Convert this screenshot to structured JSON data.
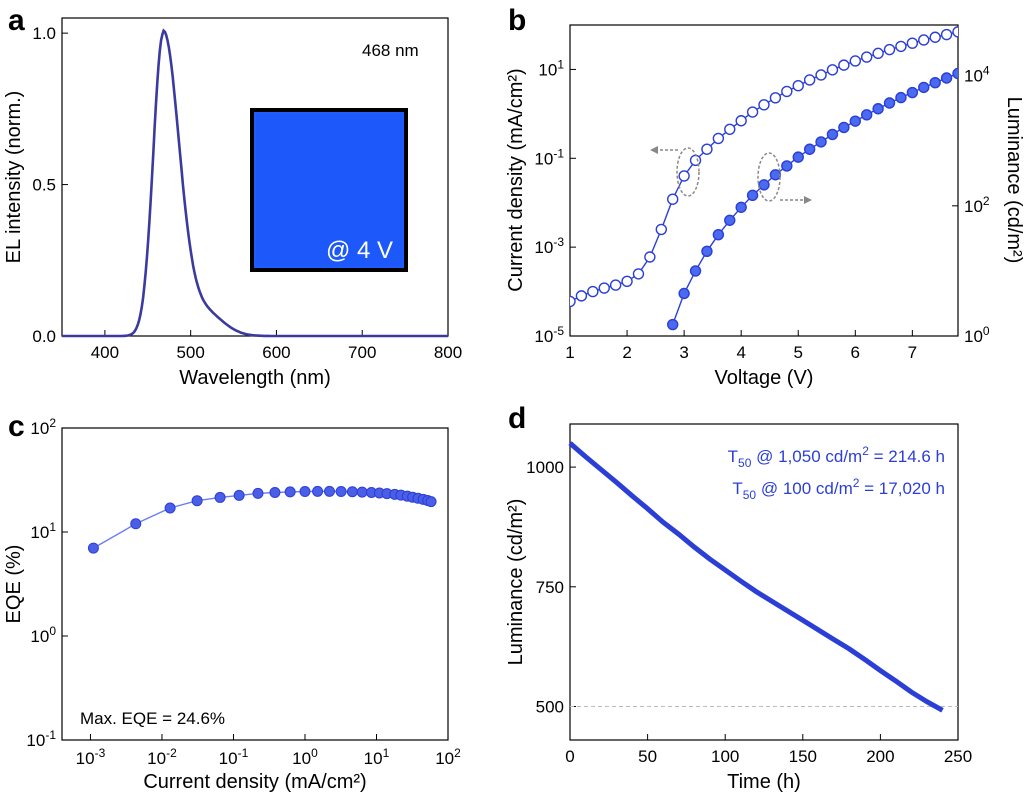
{
  "chart_data": [
    {
      "id": "a",
      "type": "line",
      "panel_label": "a",
      "xlabel": "Wavelength (nm)",
      "ylabel": "EL intensity (norm.)",
      "xlim": [
        350,
        800
      ],
      "ylim": [
        0,
        1.05
      ],
      "xticks": [
        400,
        500,
        600,
        700,
        800
      ],
      "yticks": [
        0.0,
        0.5,
        1.0
      ],
      "ytick_labels": [
        "0.0",
        "0.5",
        "1.0"
      ],
      "peak_nm": 468,
      "fwhm_nm": 32,
      "annotation": "468 nm",
      "inset_text": "@ 4 V",
      "inset_color": "#1f5cff",
      "line_color": "#3a3aa0"
    },
    {
      "id": "b",
      "type": "scatter",
      "panel_label": "b",
      "xlabel": "Voltage (V)",
      "ylabel_left": "Current density (mA/cm²)",
      "ylabel_right": "Luminance (cd/m²)",
      "xlim": [
        1,
        7.8
      ],
      "ylim_left": [
        1e-05,
        100
      ],
      "ylim_right": [
        1,
        60000
      ],
      "xticks": [
        1,
        2,
        3,
        4,
        5,
        6,
        7
      ],
      "yticks_left": [
        {
          "base": "10",
          "exp": "-5",
          "v": 1e-05
        },
        {
          "base": "10",
          "exp": "-3",
          "v": 0.001
        },
        {
          "base": "10",
          "exp": "-1",
          "v": 0.1
        },
        {
          "base": "10",
          "exp": "1",
          "v": 10
        }
      ],
      "yticks_right": [
        {
          "base": "10",
          "exp": "0",
          "v": 1
        },
        {
          "base": "10",
          "exp": "2",
          "v": 100
        },
        {
          "base": "10",
          "exp": "4",
          "v": 10000
        }
      ],
      "scale": "log",
      "series": [
        {
          "axis": "left",
          "marker": "open",
          "x": [
            1.0,
            1.2,
            1.4,
            1.6,
            1.8,
            2.0,
            2.2,
            2.4,
            2.6,
            2.8,
            3.0,
            3.2,
            3.4,
            3.6,
            3.8,
            4.0,
            4.2,
            4.4,
            4.6,
            4.8,
            5.0,
            5.2,
            5.4,
            5.6,
            5.8,
            6.0,
            6.2,
            6.4,
            6.6,
            6.8,
            7.0,
            7.2,
            7.4,
            7.6,
            7.8
          ],
          "values": [
            6e-05,
            8e-05,
            0.0001,
            0.00012,
            0.00014,
            0.00017,
            0.00025,
            0.0006,
            0.0025,
            0.012,
            0.04,
            0.09,
            0.16,
            0.28,
            0.45,
            0.7,
            1.1,
            1.6,
            2.3,
            3.2,
            4.3,
            5.8,
            7.5,
            9.8,
            12.5,
            15.5,
            19,
            23,
            28,
            33,
            39,
            46,
            53,
            61,
            70
          ]
        },
        {
          "axis": "right",
          "marker": "filled",
          "x": [
            2.8,
            3.0,
            3.2,
            3.4,
            3.6,
            3.8,
            4.0,
            4.2,
            4.4,
            4.6,
            4.8,
            5.0,
            5.2,
            5.4,
            5.6,
            5.8,
            6.0,
            6.2,
            6.4,
            6.6,
            6.8,
            7.0,
            7.2,
            7.4,
            7.6,
            7.8
          ],
          "values": [
            1.5,
            4.5,
            10,
            20,
            36,
            60,
            95,
            145,
            210,
            300,
            410,
            560,
            740,
            960,
            1250,
            1600,
            2000,
            2500,
            3100,
            3800,
            4600,
            5500,
            6600,
            7800,
            9200,
            10800
          ]
        }
      ],
      "marker_color": "#2b3fd6"
    },
    {
      "id": "c",
      "type": "scatter",
      "panel_label": "c",
      "xlabel": "Current density (mA/cm²)",
      "ylabel": "EQE (%)",
      "xlim": [
        0.0004,
        100
      ],
      "ylim": [
        0.1,
        100
      ],
      "xticks": [
        {
          "base": "10",
          "exp": "-3",
          "v": 0.001
        },
        {
          "base": "10",
          "exp": "-2",
          "v": 0.01
        },
        {
          "base": "10",
          "exp": "-1",
          "v": 0.1
        },
        {
          "base": "10",
          "exp": "0",
          "v": 1
        },
        {
          "base": "10",
          "exp": "1",
          "v": 10
        },
        {
          "base": "10",
          "exp": "2",
          "v": 100
        }
      ],
      "yticks": [
        {
          "base": "10",
          "exp": "-1",
          "v": 0.1
        },
        {
          "base": "10",
          "exp": "0",
          "v": 1
        },
        {
          "base": "10",
          "exp": "1",
          "v": 10
        },
        {
          "base": "10",
          "exp": "2",
          "v": 100
        }
      ],
      "scale": "log",
      "x": [
        0.0011,
        0.0043,
        0.013,
        0.031,
        0.065,
        0.12,
        0.22,
        0.38,
        0.62,
        1.0,
        1.5,
        2.2,
        3.2,
        4.6,
        6.3,
        8.5,
        11,
        14,
        18,
        22,
        27,
        32,
        38,
        45,
        52,
        58
      ],
      "values": [
        7,
        12,
        17,
        20,
        21.5,
        22.5,
        23.5,
        24,
        24.3,
        24.5,
        24.6,
        24.6,
        24.5,
        24.4,
        24.2,
        24,
        23.7,
        23.4,
        23,
        22.6,
        22.1,
        21.6,
        21.1,
        20.6,
        20.1,
        19.6
      ],
      "annotation": "Max. EQE = 24.6%",
      "marker_color": "#4a5ee8"
    },
    {
      "id": "d",
      "type": "line",
      "panel_label": "d",
      "xlabel": "Time (h)",
      "ylabel": "Luminance (cd/m²)",
      "xlim": [
        0,
        250
      ],
      "ylim": [
        430,
        1090
      ],
      "xticks": [
        0,
        50,
        100,
        150,
        200,
        250
      ],
      "yticks": [
        500,
        750,
        1000
      ],
      "x": [
        0,
        10,
        20,
        30,
        40,
        50,
        60,
        70,
        80,
        90,
        100,
        110,
        120,
        130,
        140,
        150,
        160,
        170,
        180,
        190,
        200,
        210,
        220,
        230,
        240
      ],
      "values": [
        1050,
        1022,
        995,
        968,
        940,
        913,
        885,
        860,
        833,
        808,
        785,
        762,
        740,
        720,
        700,
        680,
        660,
        640,
        620,
        598,
        575,
        553,
        530,
        510,
        492
      ],
      "reference_line": 500,
      "annotations": [
        {
          "prefix": "T",
          "sub": "50",
          "mid": " @ 1,050 cd/m",
          "sup": "2",
          "suffix": " = 214.6 h"
        },
        {
          "prefix": "T",
          "sub": "50",
          "mid": " @ 100 cd/m",
          "sup": "2",
          "suffix": " = 17,020 h"
        }
      ],
      "line_color": "#2b3fd6"
    }
  ]
}
